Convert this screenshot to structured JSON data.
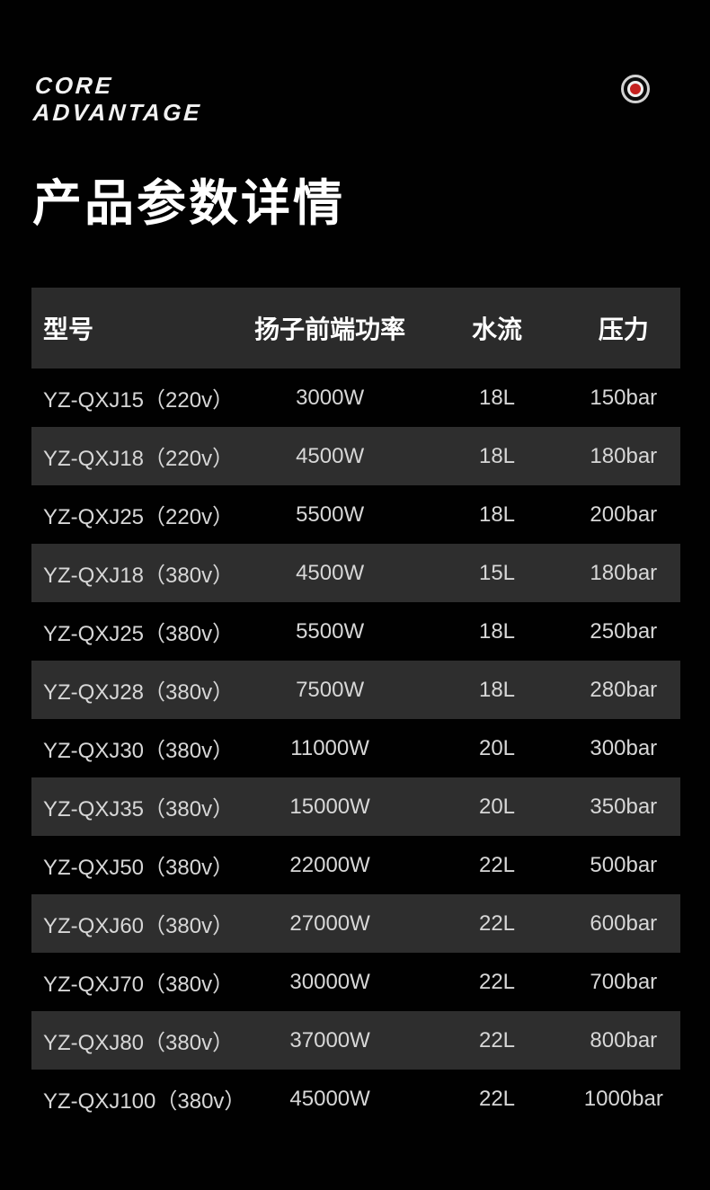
{
  "brand": {
    "line1": "CORE",
    "line2": "ADVANTAGE"
  },
  "icons": {
    "record_target": "concentric-target-with-red-center"
  },
  "title": "产品参数详情",
  "table": {
    "columns": [
      "型号",
      "扬子前端功率",
      "水流",
      "压力"
    ],
    "rows": [
      [
        "YZ-QXJ15（220v）",
        "3000W",
        "18L",
        "150bar"
      ],
      [
        "YZ-QXJ18（220v）",
        "4500W",
        "18L",
        "180bar"
      ],
      [
        "YZ-QXJ25（220v）",
        "5500W",
        "18L",
        "200bar"
      ],
      [
        "YZ-QXJ18（380v）",
        "4500W",
        "15L",
        "180bar"
      ],
      [
        "YZ-QXJ25（380v）",
        "5500W",
        "18L",
        "250bar"
      ],
      [
        "YZ-QXJ28（380v）",
        "7500W",
        "18L",
        "280bar"
      ],
      [
        "YZ-QXJ30（380v）",
        "11000W",
        "20L",
        "300bar"
      ],
      [
        "YZ-QXJ35（380v）",
        "15000W",
        "20L",
        "350bar"
      ],
      [
        "YZ-QXJ50（380v）",
        "22000W",
        "22L",
        "500bar"
      ],
      [
        "YZ-QXJ60（380v）",
        "27000W",
        "22L",
        "600bar"
      ],
      [
        "YZ-QXJ70（380v）",
        "30000W",
        "22L",
        "700bar"
      ],
      [
        "YZ-QXJ80（380v）",
        "37000W",
        "22L",
        "800bar"
      ],
      [
        "YZ-QXJ100（380v）",
        "45000W",
        "22L",
        "1000bar"
      ]
    ]
  },
  "colors": {
    "background": "#010101",
    "header_row_bg": "#2b2b2b",
    "alt_row_bg": "#2e2e2e",
    "row_text": "#d7d7d7",
    "header_text": "#ffffff",
    "accent_red": "#c4211f"
  }
}
